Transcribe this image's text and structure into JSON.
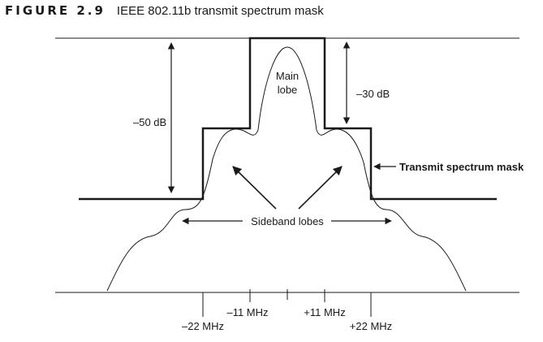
{
  "figure": {
    "label": "FIGURE 2.9",
    "title": "IEEE 802.11b transmit spectrum mask"
  },
  "annotations": {
    "main_lobe_line1": "Main",
    "main_lobe_line2": "lobe",
    "minus_30db": "–30 dB",
    "minus_50db": "–50 dB",
    "mask_label": "Transmit spectrum mask",
    "sideband_label": "Sideband lobes"
  },
  "axis": {
    "ticks": [
      {
        "value": -22,
        "label": "–22 MHz",
        "row": "lower"
      },
      {
        "value": -11,
        "label": "–11 MHz",
        "row": "upper"
      },
      {
        "value": 11,
        "label": "+11 MHz",
        "row": "upper"
      },
      {
        "value": 22,
        "label": "+22 MHz",
        "row": "lower"
      }
    ]
  },
  "colors": {
    "ink": "#1a1a1a",
    "background": "#ffffff"
  }
}
